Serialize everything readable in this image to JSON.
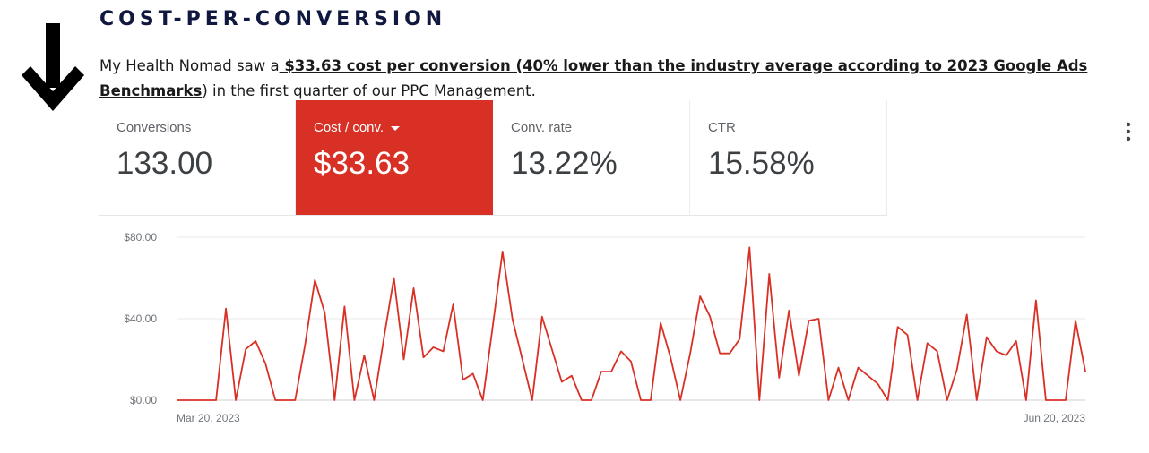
{
  "heading": "COST-PER-CONVERSION",
  "intro": {
    "prefix": "My Health Nomad saw a",
    "highlight": " $33.63 cost per conversion (40% lower than the industry average according to 2023 Google Ads Benchmarks",
    "suffix": ") in the first quarter of our PPC Management."
  },
  "icons": {
    "arrow": "arrow-down-icon",
    "menu": "more-vert-icon"
  },
  "metrics": [
    {
      "label": "Conversions",
      "value": "133.00"
    },
    {
      "label": "Cost / conv.",
      "value": "$33.63"
    },
    {
      "label": "Conv. rate",
      "value": "13.22%"
    },
    {
      "label": "CTR",
      "value": "15.58%"
    }
  ],
  "colors": {
    "accent": "#d93025",
    "heading": "#101840"
  },
  "chart_data": {
    "type": "line",
    "series": [
      {
        "values": [
          0,
          0,
          0,
          0,
          0,
          45,
          0,
          25,
          29,
          18,
          0,
          0,
          0,
          27,
          59,
          43,
          0,
          46,
          0,
          22,
          0,
          31,
          60,
          20,
          55,
          21,
          26,
          24,
          47,
          10,
          13,
          0,
          36,
          73,
          40,
          20,
          0,
          41,
          25,
          9,
          12,
          0,
          0,
          14,
          14,
          24,
          19,
          0,
          0,
          38,
          21,
          0,
          23,
          51,
          41,
          23,
          23,
          30,
          75,
          0,
          62,
          11,
          44,
          12,
          39,
          40,
          0,
          16,
          0,
          16,
          12,
          8,
          0,
          36,
          32,
          0,
          28,
          24,
          0,
          15,
          42,
          0,
          31,
          24,
          22,
          29,
          0,
          49,
          0,
          0,
          0,
          39,
          14
        ]
      }
    ],
    "y_ticks": [
      "$80.00",
      "$40.00",
      "$0.00"
    ],
    "ylim": [
      0,
      80
    ],
    "x_ticks": [
      "Mar 20, 2023",
      "Jun 20, 2023"
    ],
    "grid": true
  }
}
